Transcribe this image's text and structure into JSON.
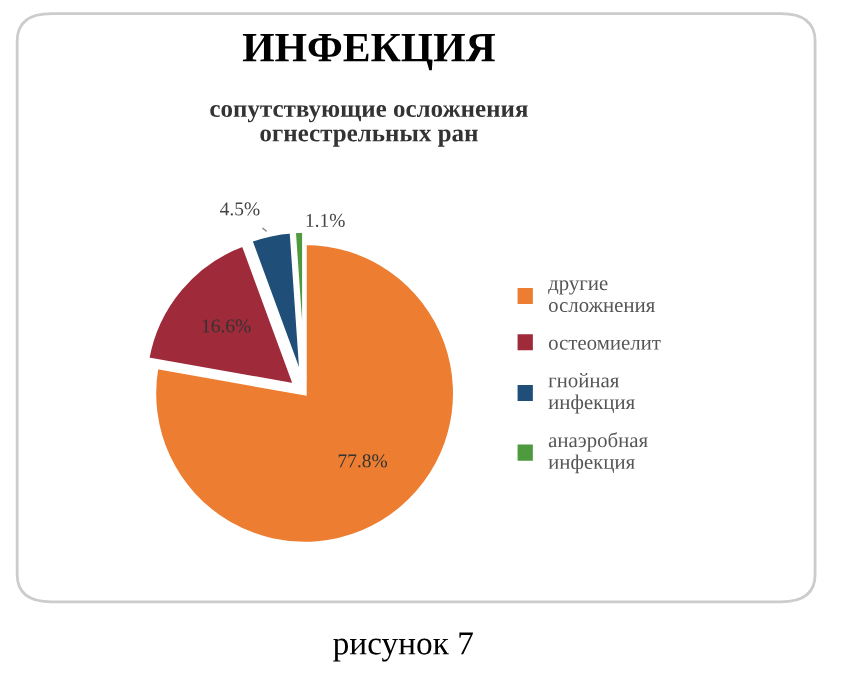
{
  "chart_data": {
    "type": "pie",
    "title": "ИНФЕКЦИЯ",
    "subtitle": "сопутствующие осложнения\nогнестрельных ран",
    "categories": [
      "другие\nосложнения",
      "остеомиелит",
      "гнойная\nинфекция",
      "анаэробная\nинфекция"
    ],
    "values": [
      77.8,
      16.6,
      4.5,
      1.1
    ],
    "colors": [
      "#ed7d31",
      "#9e2a3a",
      "#1f4e79",
      "#4e9a3f"
    ],
    "value_labels": [
      "77.8%",
      "16.6%",
      "4.5%",
      "1.1%"
    ],
    "legend": "right",
    "annotations": [
      "рисунок 7"
    ]
  }
}
